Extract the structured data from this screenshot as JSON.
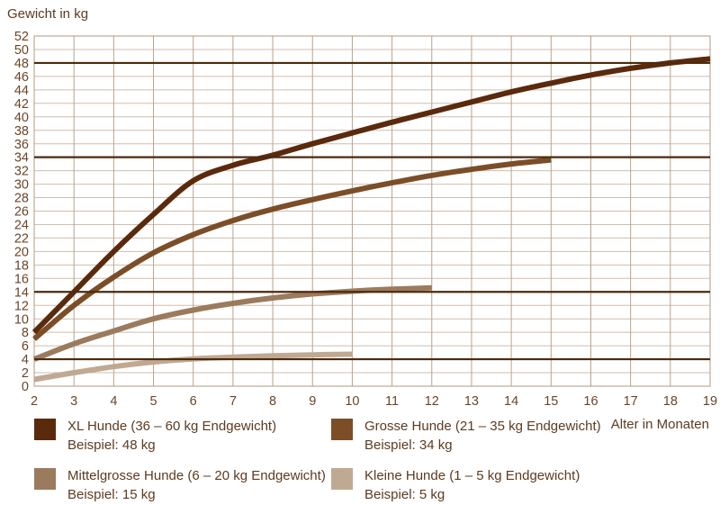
{
  "chart_data": {
    "type": "line",
    "title": "Gewicht in kg",
    "xlabel": "Alter in Monaten",
    "ylabel": "Gewicht in kg",
    "xlim": [
      2,
      19
    ],
    "ylim": [
      0,
      52
    ],
    "x_ticks": [
      2,
      3,
      4,
      5,
      6,
      7,
      8,
      9,
      10,
      11,
      12,
      13,
      14,
      15,
      16,
      17,
      18,
      19
    ],
    "y_tick_step": 2,
    "grid": true,
    "legend_position": "bottom",
    "reference_lines": [
      48,
      34,
      14,
      4
    ],
    "colors": {
      "grid_h": "#cfbeae",
      "grid_v": "#b9a28c",
      "border": "#b09880",
      "reference": "#4e2a0c",
      "tick_text": "#6b4526"
    },
    "series": [
      {
        "name": "XL Hunde (36 – 60 kg Endgewicht)",
        "example": "Beispiel: 48 kg",
        "color": "#5a2a0c",
        "x": [
          2,
          3,
          4,
          5,
          6,
          7,
          8,
          9,
          10,
          11,
          12,
          13,
          14,
          15,
          16,
          17,
          18,
          19
        ],
        "values": [
          8,
          14,
          20,
          25.5,
          30.5,
          32.8,
          34.3,
          36,
          37.6,
          39.2,
          40.7,
          42.2,
          43.7,
          45,
          46.2,
          47.2,
          48,
          48.6
        ]
      },
      {
        "name": "Grosse Hunde (21 – 35 kg Endgewicht)",
        "example": "Beispiel: 34 kg",
        "color": "#7b4e28",
        "x": [
          2,
          3,
          4,
          5,
          6,
          7,
          8,
          9,
          10,
          11,
          12,
          13,
          14,
          15
        ],
        "values": [
          7,
          12,
          16.2,
          19.8,
          22.5,
          24.6,
          26.3,
          27.7,
          29,
          30.2,
          31.3,
          32.2,
          33,
          33.6
        ]
      },
      {
        "name": "Mittelgrosse Hunde (6 – 20 kg Endgewicht)",
        "example": "Beispiel: 15 kg",
        "color": "#9b7b5d",
        "x": [
          2,
          3,
          4,
          5,
          6,
          7,
          8,
          9,
          10,
          11,
          12
        ],
        "values": [
          4,
          6.3,
          8.2,
          10,
          11.3,
          12.3,
          13.1,
          13.7,
          14.1,
          14.4,
          14.6
        ]
      },
      {
        "name": "Kleine Hunde (1 – 5 kg Endgewicht)",
        "example": "Beispiel: 5 kg",
        "color": "#c0a993",
        "x": [
          2,
          3,
          4,
          5,
          6,
          7,
          8,
          9,
          10
        ],
        "values": [
          1,
          2,
          2.9,
          3.6,
          4.05,
          4.3,
          4.5,
          4.65,
          4.75
        ]
      }
    ]
  }
}
